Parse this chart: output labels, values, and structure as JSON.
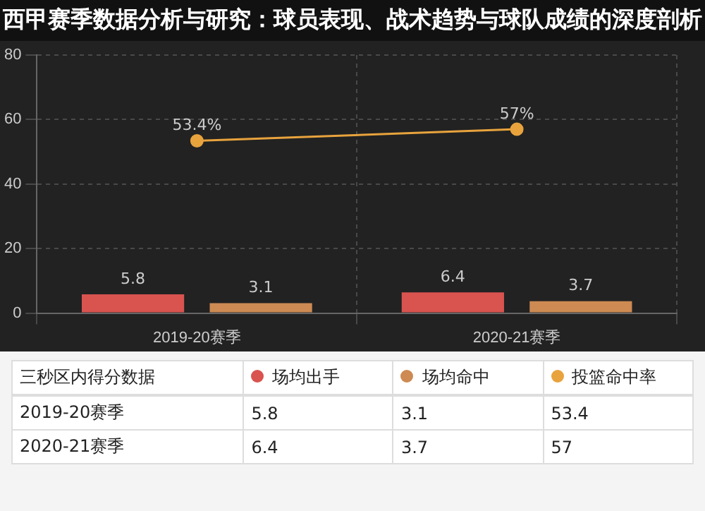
{
  "chart_data": [
    {
      "type": "bar",
      "title": "西甲赛季数据分析与研究：球员表现、战术趋势与球队成绩的深度剖析",
      "legend_title": "三秒区内得分数据",
      "categories": [
        "2019-20赛季",
        "2020-21赛季"
      ],
      "series": [
        {
          "name": "场均出手",
          "color": "#d9534f",
          "values": [
            5.8,
            6.4
          ],
          "value_labels": [
            "5.8",
            "6.4"
          ]
        },
        {
          "name": "场均命中",
          "color": "#cd8a52",
          "values": [
            3.1,
            3.7
          ],
          "value_labels": [
            "3.1",
            "3.7"
          ]
        },
        {
          "name": "投篮命中率",
          "type": "line",
          "color": "#e8a33d",
          "values": [
            53.4,
            57
          ],
          "value_labels": [
            "53.4%",
            "57%"
          ],
          "marker": "circle"
        }
      ],
      "ylim": [
        0,
        80
      ],
      "yticks": [
        0,
        20,
        40,
        60,
        80
      ],
      "grid": true,
      "legend": "bottom"
    },
    {
      "type": "other",
      "categories": [
        "2019-20赛季",
        "2020-21赛季"
      ],
      "series": [
        {
          "values": [
            5.8,
            6.4
          ]
        },
        {
          "values": [
            3.1,
            3.7
          ]
        },
        {
          "values": [
            53.4,
            57
          ]
        }
      ],
      "data_labels": true
    }
  ]
}
